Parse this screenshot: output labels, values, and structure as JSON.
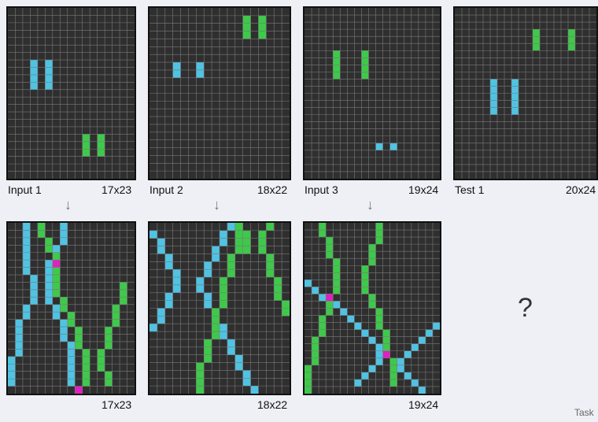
{
  "footer": "Task",
  "colors": {
    "background": "#2f2f2f",
    "gridline": "#7a7a7a",
    "cyan": "#4fc3e3",
    "green": "#3ec94a",
    "magenta": "#e020c0"
  },
  "pairs": [
    {
      "input_label": "Input 1",
      "size_label": "17x23",
      "output_size_label": "17x23",
      "input": {
        "cols": 17,
        "rows": 23,
        "cells": {
          "cyan": [
            [
              3,
              7
            ],
            [
              3,
              8
            ],
            [
              3,
              9
            ],
            [
              3,
              10
            ],
            [
              5,
              7
            ],
            [
              5,
              8
            ],
            [
              5,
              9
            ],
            [
              5,
              10
            ]
          ],
          "green": [
            [
              10,
              17
            ],
            [
              10,
              18
            ],
            [
              10,
              19
            ],
            [
              12,
              17
            ],
            [
              12,
              18
            ],
            [
              12,
              19
            ]
          ]
        }
      },
      "output": {
        "cols": 17,
        "rows": 23,
        "cells": {
          "cyan": [
            [
              2,
              0
            ],
            [
              2,
              1
            ],
            [
              2,
              2
            ],
            [
              2,
              3
            ],
            [
              2,
              4
            ],
            [
              2,
              5
            ],
            [
              2,
              6
            ],
            [
              3,
              7
            ],
            [
              3,
              8
            ],
            [
              3,
              9
            ],
            [
              3,
              10
            ],
            [
              2,
              11
            ],
            [
              2,
              12
            ],
            [
              1,
              13
            ],
            [
              1,
              14
            ],
            [
              1,
              15
            ],
            [
              1,
              16
            ],
            [
              1,
              17
            ],
            [
              0,
              18
            ],
            [
              0,
              19
            ],
            [
              0,
              20
            ],
            [
              0,
              21
            ],
            [
              7,
              0
            ],
            [
              7,
              1
            ],
            [
              7,
              2
            ],
            [
              6,
              3
            ],
            [
              6,
              4
            ],
            [
              5,
              5
            ],
            [
              5,
              6
            ],
            [
              5,
              7
            ],
            [
              5,
              8
            ],
            [
              5,
              9
            ],
            [
              5,
              10
            ],
            [
              6,
              11
            ],
            [
              6,
              12
            ],
            [
              7,
              13
            ],
            [
              7,
              14
            ],
            [
              7,
              15
            ],
            [
              8,
              16
            ],
            [
              8,
              17
            ],
            [
              8,
              18
            ],
            [
              8,
              19
            ],
            [
              8,
              20
            ],
            [
              8,
              21
            ]
          ],
          "green": [
            [
              4,
              0
            ],
            [
              4,
              1
            ],
            [
              5,
              2
            ],
            [
              5,
              3
            ],
            [
              6,
              4
            ],
            [
              6,
              5
            ],
            [
              6,
              6
            ],
            [
              6,
              7
            ],
            [
              6,
              8
            ],
            [
              6,
              9
            ],
            [
              7,
              10
            ],
            [
              7,
              11
            ],
            [
              8,
              12
            ],
            [
              8,
              13
            ],
            [
              9,
              14
            ],
            [
              9,
              15
            ],
            [
              9,
              16
            ],
            [
              10,
              17
            ],
            [
              10,
              18
            ],
            [
              10,
              19
            ],
            [
              10,
              20
            ],
            [
              10,
              21
            ],
            [
              15,
              8
            ],
            [
              15,
              9
            ],
            [
              15,
              10
            ],
            [
              14,
              11
            ],
            [
              14,
              12
            ],
            [
              14,
              13
            ],
            [
              13,
              14
            ],
            [
              13,
              15
            ],
            [
              13,
              16
            ],
            [
              12,
              17
            ],
            [
              12,
              18
            ],
            [
              12,
              19
            ],
            [
              13,
              20
            ],
            [
              13,
              21
            ]
          ],
          "magenta": [
            [
              6,
              5
            ],
            [
              9,
              22
            ]
          ]
        }
      }
    },
    {
      "input_label": "Input 2",
      "size_label": "18x22",
      "output_size_label": "18x22",
      "input": {
        "cols": 18,
        "rows": 22,
        "cells": {
          "cyan": [
            [
              3,
              7
            ],
            [
              3,
              8
            ],
            [
              6,
              7
            ],
            [
              6,
              8
            ]
          ],
          "green": [
            [
              12,
              1
            ],
            [
              12,
              2
            ],
            [
              12,
              3
            ],
            [
              14,
              1
            ],
            [
              14,
              2
            ],
            [
              14,
              3
            ]
          ]
        }
      },
      "output": {
        "cols": 18,
        "rows": 22,
        "cells": {
          "cyan": [
            [
              0,
              1
            ],
            [
              1,
              2
            ],
            [
              1,
              3
            ],
            [
              2,
              4
            ],
            [
              2,
              5
            ],
            [
              3,
              6
            ],
            [
              3,
              7
            ],
            [
              3,
              8
            ],
            [
              2,
              9
            ],
            [
              2,
              10
            ],
            [
              1,
              11
            ],
            [
              1,
              12
            ],
            [
              0,
              13
            ],
            [
              10,
              0
            ],
            [
              9,
              1
            ],
            [
              9,
              2
            ],
            [
              8,
              3
            ],
            [
              8,
              4
            ],
            [
              7,
              5
            ],
            [
              7,
              6
            ],
            [
              6,
              7
            ],
            [
              6,
              8
            ],
            [
              7,
              9
            ],
            [
              7,
              10
            ],
            [
              8,
              11
            ],
            [
              8,
              12
            ],
            [
              9,
              13
            ],
            [
              9,
              14
            ],
            [
              10,
              15
            ],
            [
              10,
              16
            ],
            [
              11,
              17
            ],
            [
              11,
              18
            ],
            [
              12,
              19
            ],
            [
              12,
              20
            ],
            [
              13,
              21
            ]
          ],
          "green": [
            [
              11,
              0
            ],
            [
              11,
              1
            ],
            [
              11,
              2
            ],
            [
              11,
              3
            ],
            [
              10,
              4
            ],
            [
              10,
              5
            ],
            [
              10,
              6
            ],
            [
              9,
              7
            ],
            [
              9,
              8
            ],
            [
              9,
              9
            ],
            [
              9,
              10
            ],
            [
              8,
              11
            ],
            [
              8,
              12
            ],
            [
              8,
              13
            ],
            [
              8,
              14
            ],
            [
              7,
              15
            ],
            [
              7,
              16
            ],
            [
              7,
              17
            ],
            [
              6,
              18
            ],
            [
              6,
              19
            ],
            [
              6,
              20
            ],
            [
              6,
              21
            ],
            [
              12,
              1
            ],
            [
              12,
              2
            ],
            [
              12,
              3
            ],
            [
              14,
              1
            ],
            [
              14,
              2
            ],
            [
              14,
              3
            ],
            [
              15,
              0
            ],
            [
              15,
              4
            ],
            [
              15,
              5
            ],
            [
              15,
              6
            ],
            [
              16,
              7
            ],
            [
              16,
              8
            ],
            [
              16,
              9
            ],
            [
              17,
              10
            ],
            [
              17,
              11
            ]
          ]
        }
      }
    },
    {
      "input_label": "Input 3",
      "size_label": "19x24",
      "output_size_label": "19x24",
      "input": {
        "cols": 19,
        "rows": 24,
        "cells": {
          "cyan": [
            [
              10,
              19
            ],
            [
              12,
              19
            ]
          ],
          "green": [
            [
              4,
              6
            ],
            [
              4,
              7
            ],
            [
              4,
              8
            ],
            [
              4,
              9
            ],
            [
              8,
              6
            ],
            [
              8,
              7
            ],
            [
              8,
              8
            ],
            [
              8,
              9
            ]
          ]
        }
      },
      "output": {
        "cols": 19,
        "rows": 24,
        "cells": {
          "cyan": [
            [
              0,
              8
            ],
            [
              1,
              9
            ],
            [
              2,
              10
            ],
            [
              3,
              10
            ],
            [
              4,
              11
            ],
            [
              5,
              12
            ],
            [
              6,
              13
            ],
            [
              7,
              14
            ],
            [
              8,
              15
            ],
            [
              9,
              16
            ],
            [
              10,
              17
            ],
            [
              10,
              18
            ],
            [
              10,
              19
            ],
            [
              9,
              20
            ],
            [
              8,
              21
            ],
            [
              7,
              22
            ],
            [
              18,
              14
            ],
            [
              17,
              15
            ],
            [
              16,
              16
            ],
            [
              15,
              17
            ],
            [
              14,
              18
            ],
            [
              13,
              19
            ],
            [
              12,
              19
            ],
            [
              13,
              20
            ],
            [
              14,
              21
            ],
            [
              15,
              22
            ],
            [
              16,
              23
            ]
          ],
          "green": [
            [
              2,
              0
            ],
            [
              2,
              1
            ],
            [
              3,
              2
            ],
            [
              3,
              3
            ],
            [
              3,
              4
            ],
            [
              4,
              5
            ],
            [
              4,
              6
            ],
            [
              4,
              7
            ],
            [
              4,
              8
            ],
            [
              4,
              9
            ],
            [
              3,
              10
            ],
            [
              3,
              11
            ],
            [
              3,
              12
            ],
            [
              2,
              13
            ],
            [
              2,
              14
            ],
            [
              2,
              15
            ],
            [
              1,
              16
            ],
            [
              1,
              17
            ],
            [
              1,
              18
            ],
            [
              1,
              19
            ],
            [
              0,
              20
            ],
            [
              0,
              21
            ],
            [
              0,
              22
            ],
            [
              0,
              23
            ],
            [
              10,
              0
            ],
            [
              10,
              1
            ],
            [
              10,
              2
            ],
            [
              9,
              3
            ],
            [
              9,
              4
            ],
            [
              9,
              5
            ],
            [
              8,
              6
            ],
            [
              8,
              7
            ],
            [
              8,
              8
            ],
            [
              8,
              9
            ],
            [
              9,
              10
            ],
            [
              9,
              11
            ],
            [
              10,
              12
            ],
            [
              10,
              13
            ],
            [
              10,
              14
            ],
            [
              11,
              15
            ],
            [
              11,
              16
            ],
            [
              11,
              17
            ],
            [
              11,
              18
            ],
            [
              12,
              19
            ],
            [
              12,
              20
            ],
            [
              12,
              21
            ],
            [
              12,
              22
            ]
          ],
          "magenta": [
            [
              3,
              10
            ],
            [
              11,
              18
            ]
          ]
        }
      }
    }
  ],
  "test": {
    "label": "Test 1",
    "size_label": "20x24",
    "question": "?",
    "grid": {
      "cols": 20,
      "rows": 24,
      "cells": {
        "cyan": [
          [
            5,
            10
          ],
          [
            5,
            11
          ],
          [
            5,
            12
          ],
          [
            5,
            13
          ],
          [
            5,
            14
          ],
          [
            8,
            10
          ],
          [
            8,
            11
          ],
          [
            8,
            12
          ],
          [
            8,
            13
          ],
          [
            8,
            14
          ]
        ],
        "green": [
          [
            11,
            3
          ],
          [
            11,
            4
          ],
          [
            11,
            5
          ],
          [
            16,
            3
          ],
          [
            16,
            4
          ],
          [
            16,
            5
          ]
        ]
      }
    }
  }
}
